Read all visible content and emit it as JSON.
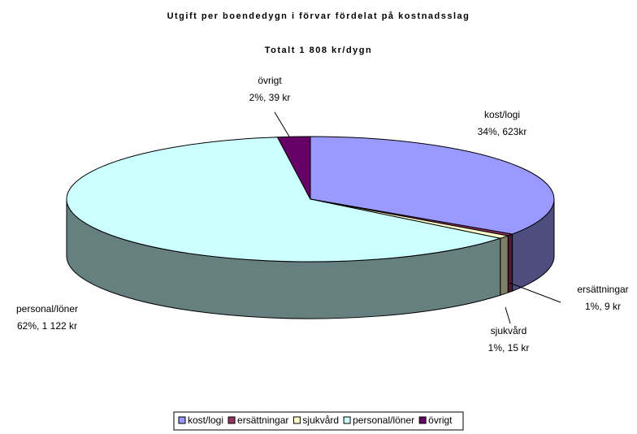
{
  "chart_data": {
    "type": "pie3d",
    "title": "Utgift per boendedygn i förvar fördelat på kostnadsslag",
    "subtitle": "Totalt 1 808 kr/dygn",
    "categories": [
      "kost/logi",
      "ersättningar",
      "sjukvård",
      "personal/löner",
      "övrigt"
    ],
    "values": [
      623,
      9,
      15,
      1122,
      39
    ],
    "value_labels": [
      "34%, 623kr",
      "1%, 9 kr",
      "1%, 15 kr",
      "62%, 1 122 kr",
      "2%, 39 kr"
    ],
    "colors": [
      "#9999ff",
      "#993366",
      "#ffffcc",
      "#ccffff",
      "#660066"
    ],
    "legend": "bottom"
  }
}
